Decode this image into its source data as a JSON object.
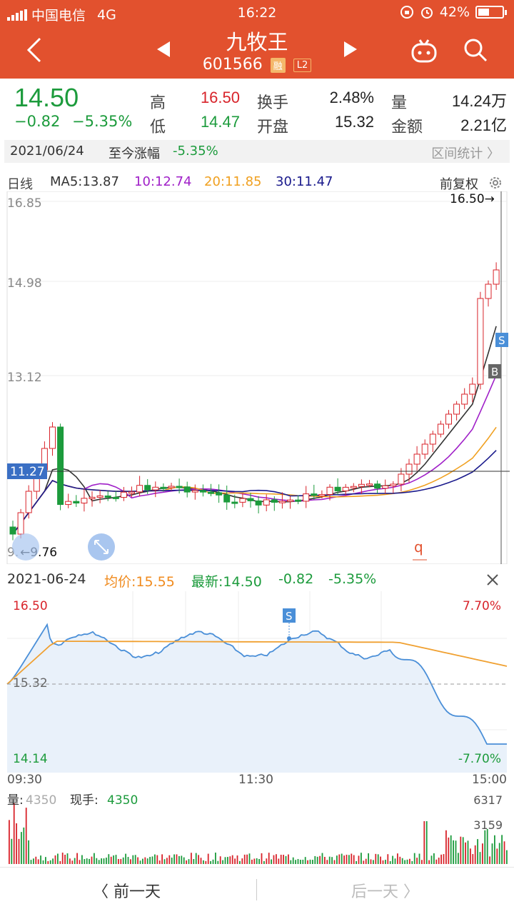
{
  "status_bar": {
    "carrier": "中国电信",
    "network": "4G",
    "time": "16:22",
    "battery": "42%"
  },
  "header": {
    "stock_name": "九牧王",
    "stock_code": "601566",
    "tag_margin": "融",
    "tag_level": "L2"
  },
  "quote": {
    "price": "14.50",
    "change": "−0.82",
    "change_pct": "−5.35%",
    "high_label": "高",
    "high": "16.50",
    "low_label": "低",
    "low": "14.47",
    "turnover_label": "换手",
    "turnover": "2.48%",
    "open_label": "开盘",
    "open": "15.32",
    "volume_label": "量",
    "volume": "14.24万",
    "amount_label": "金额",
    "amount": "2.21亿"
  },
  "range_bar": {
    "date": "2021/06/24",
    "label": "至今涨幅",
    "value": "-5.35%",
    "stats_button": "区间统计 〉"
  },
  "kline": {
    "period": "日线",
    "ma5": "MA5:13.87",
    "ma10": "10:12.74",
    "ma20": "20:11.85",
    "ma30": "30:11.47",
    "adjust": "前复权",
    "colors": {
      "up": "#d8232a",
      "down": "#1c9b3c",
      "ma5": "#333333",
      "ma10": "#a020c8",
      "ma20": "#f0a020",
      "ma30": "#1a1a8c"
    },
    "y_ticks": [
      "16.85",
      "14.98",
      "13.12"
    ],
    "crosshair_price": "11.27",
    "max_label": "16.50→",
    "min_label": "←9.76",
    "min_tick_partial": "9.",
    "marker_s": "S",
    "marker_b": "B",
    "q_marker": "q"
  },
  "intraday": {
    "date": "2021-06-24",
    "avg_price": "均价:15.55",
    "latest": "最新:14.50",
    "change": "-0.82",
    "change_pct": "-5.35%",
    "y_top": "16.50",
    "y_mid": "15.32",
    "y_bottom": "14.14",
    "pct_top": "7.70%",
    "pct_bottom": "-7.70%",
    "x_start": "09:30",
    "x_mid": "11:30",
    "x_end": "15:00",
    "marker_s": "S"
  },
  "volume": {
    "label": "量:",
    "label_value": "4350",
    "hand_label": "现手:",
    "hand_value": "4350",
    "max": "6317",
    "mid": "3159"
  },
  "footer": {
    "prev_day": "〈 前一天",
    "next_day": "后一天 〉"
  }
}
